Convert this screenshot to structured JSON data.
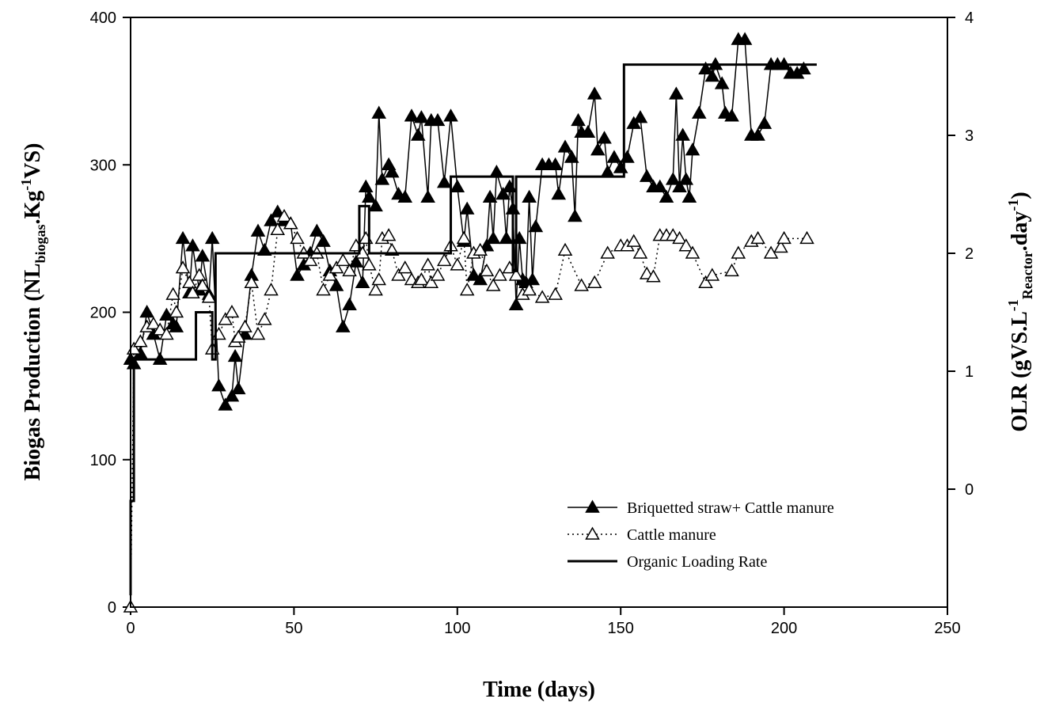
{
  "chart_data": {
    "type": "line",
    "xlabel": "Time (days)",
    "ylabel_parts": [
      "Biogas Production (NL",
      "biogas",
      ".Kg",
      "-1",
      "VS)"
    ],
    "y2label_parts": [
      "OLR (gVS.L",
      "-1",
      "Reactor",
      ".day",
      "-1",
      ")"
    ],
    "xlim": [
      0,
      250
    ],
    "ylim": [
      0,
      400
    ],
    "y2lim": [
      -1,
      4
    ],
    "x_ticks": [
      "0",
      "50",
      "100",
      "150",
      "200",
      "250"
    ],
    "y_ticks": [
      "0",
      "100",
      "200",
      "300",
      "400"
    ],
    "y2_ticks": [
      "0",
      "1",
      "2",
      "3",
      "4"
    ],
    "legend_position": "lower-right",
    "series": [
      {
        "name": "Briquetted straw+ Cattle manure",
        "marker": "filled-triangle",
        "line_style": "solid",
        "color": "#000000",
        "axis": "left",
        "x": [
          0,
          1,
          3,
          5,
          7,
          9,
          11,
          13,
          14,
          16,
          18,
          19,
          21,
          22,
          24,
          25,
          27,
          29,
          31,
          32,
          33,
          35,
          37,
          39,
          41,
          43,
          45,
          47,
          49,
          51,
          53,
          55,
          57,
          59,
          61,
          63,
          65,
          67,
          69,
          71,
          72,
          73,
          75,
          76,
          77,
          79,
          80,
          82,
          84,
          86,
          88,
          89,
          91,
          92,
          94,
          96,
          98,
          100,
          102,
          103,
          105,
          107,
          109,
          110,
          111,
          112,
          114,
          115,
          116,
          117,
          118,
          119,
          120,
          121,
          122,
          123,
          124,
          126,
          128,
          130,
          131,
          133,
          135,
          136,
          137,
          138,
          140,
          142,
          143,
          145,
          146,
          148,
          150,
          152,
          154,
          156,
          158,
          160,
          162,
          164,
          166,
          167,
          168,
          169,
          170,
          171,
          172,
          174,
          176,
          178,
          179,
          181,
          182,
          184,
          186,
          188,
          190,
          192,
          194,
          196,
          198,
          200,
          202,
          204,
          206
        ],
        "y": [
          168,
          165,
          172,
          200,
          185,
          168,
          198,
          192,
          190,
          250,
          213,
          245,
          215,
          238,
          212,
          250,
          150,
          137,
          143,
          170,
          148,
          185,
          225,
          255,
          242,
          262,
          268,
          262,
          260,
          225,
          232,
          240,
          255,
          248,
          228,
          218,
          190,
          205,
          234,
          220,
          285,
          278,
          272,
          335,
          290,
          300,
          295,
          280,
          278,
          333,
          320,
          332,
          278,
          330,
          330,
          288,
          333,
          285,
          248,
          270,
          225,
          222,
          245,
          278,
          250,
          295,
          280,
          250,
          285,
          270,
          205,
          250,
          222,
          220,
          278,
          222,
          258,
          300,
          300,
          300,
          280,
          312,
          305,
          265,
          330,
          322,
          322,
          348,
          310,
          318,
          295,
          305,
          298,
          305,
          328,
          332,
          292,
          285,
          285,
          278,
          290,
          348,
          285,
          320,
          290,
          278,
          310,
          335,
          365,
          360,
          368,
          355,
          335,
          333,
          385,
          385,
          320,
          320,
          328,
          368,
          368,
          368,
          362,
          362,
          365
        ]
      },
      {
        "name": "Cattle manure",
        "marker": "open-triangle",
        "line_style": "dotted",
        "color": "#000000",
        "axis": "left",
        "x": [
          0,
          1,
          3,
          5,
          7,
          9,
          11,
          13,
          14,
          16,
          18,
          19,
          21,
          22,
          24,
          25,
          27,
          29,
          31,
          32,
          33,
          35,
          37,
          39,
          41,
          43,
          45,
          47,
          49,
          51,
          53,
          55,
          57,
          59,
          61,
          63,
          65,
          67,
          69,
          71,
          72,
          73,
          75,
          76,
          77,
          79,
          80,
          82,
          84,
          86,
          88,
          89,
          91,
          92,
          94,
          96,
          98,
          100,
          102,
          103,
          105,
          107,
          109,
          111,
          113,
          116,
          118,
          120,
          122,
          126,
          130,
          133,
          138,
          142,
          146,
          150,
          152,
          154,
          156,
          158,
          160,
          162,
          164,
          166,
          168,
          170,
          172,
          176,
          178,
          184,
          186,
          190,
          192,
          196,
          199,
          200,
          207
        ],
        "y": [
          0,
          175,
          180,
          190,
          192,
          188,
          185,
          212,
          200,
          230,
          220,
          213,
          225,
          218,
          210,
          175,
          185,
          195,
          200,
          180,
          183,
          190,
          220,
          185,
          195,
          215,
          256,
          265,
          260,
          250,
          240,
          235,
          240,
          215,
          225,
          230,
          235,
          228,
          245,
          240,
          250,
          232,
          215,
          222,
          250,
          252,
          242,
          225,
          230,
          222,
          220,
          222,
          232,
          220,
          225,
          235,
          245,
          232,
          250,
          215,
          240,
          242,
          228,
          218,
          225,
          230,
          225,
          212,
          215,
          210,
          212,
          242,
          218,
          220,
          240,
          245,
          245,
          248,
          240,
          226,
          224,
          252,
          252,
          252,
          250,
          245,
          240,
          220,
          225,
          228,
          240,
          248,
          250,
          240,
          244,
          250,
          250
        ]
      },
      {
        "name": "Organic Loading Rate",
        "marker": "none",
        "line_style": "solid",
        "color": "#000000",
        "axis": "right",
        "x": [
          0,
          0,
          1,
          1,
          20,
          20,
          25,
          25,
          26,
          26,
          70,
          70,
          73,
          73,
          98,
          98,
          101,
          101,
          117,
          117,
          118,
          118,
          121,
          121,
          149,
          149,
          151,
          151,
          210
        ],
        "y": [
          -0.9,
          -0.1,
          -0.1,
          1.1,
          1.1,
          1.5,
          1.5,
          1.1,
          1.1,
          2.0,
          2.0,
          2.4,
          2.4,
          2.0,
          2.0,
          2.65,
          2.65,
          2.65,
          2.65,
          1.85,
          1.85,
          2.65,
          2.65,
          2.65,
          2.65,
          2.65,
          2.65,
          3.6,
          3.6
        ]
      }
    ]
  }
}
